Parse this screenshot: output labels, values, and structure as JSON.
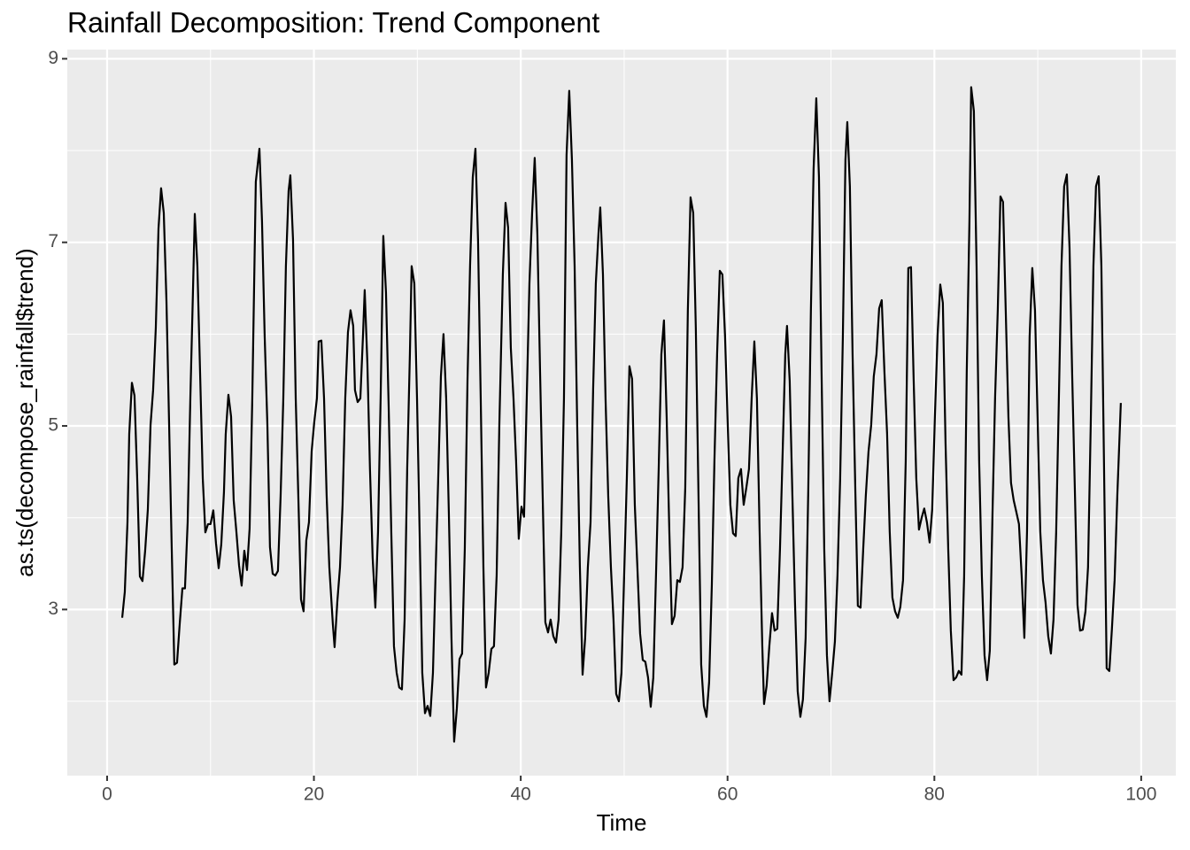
{
  "chart_data": {
    "type": "line",
    "title": "Rainfall Decomposition: Trend Component",
    "x_label": "Time",
    "y_label": "as.ts(decompose_rainfall$trend)",
    "xlim": [
      -3.85,
      103.35
    ],
    "ylim": [
      1.19,
      9.1
    ],
    "xticks": [
      0,
      20,
      40,
      60,
      80,
      100
    ],
    "yticks": [
      3,
      5,
      7,
      9
    ],
    "grid": true,
    "color": "#000000",
    "x": [
      1.46,
      1.71,
      1.97,
      2.14,
      2.4,
      2.65,
      2.91,
      3.17,
      3.42,
      3.68,
      3.94,
      4.2,
      4.45,
      4.71,
      4.97,
      5.22,
      5.48,
      5.74,
      6.0,
      6.25,
      6.5,
      6.76,
      7.02,
      7.28,
      7.53,
      7.79,
      8.05,
      8.3,
      8.48,
      8.73,
      8.99,
      9.25,
      9.5,
      9.76,
      10.0,
      10.27,
      10.53,
      10.79,
      11.04,
      11.3,
      11.47,
      11.73,
      11.99,
      12.24,
      12.5,
      12.76,
      13.01,
      13.27,
      13.53,
      13.78,
      14.04,
      14.38,
      14.73,
      14.98,
      15.24,
      15.5,
      15.75,
      16.01,
      16.27,
      16.52,
      16.78,
      17.04,
      17.29,
      17.55,
      17.72,
      17.98,
      18.24,
      18.49,
      18.75,
      19.0,
      19.26,
      19.52,
      19.78,
      20.03,
      20.29,
      20.46,
      20.72,
      20.98,
      21.23,
      21.49,
      21.83,
      22.0,
      22.26,
      22.52,
      22.77,
      23.03,
      23.29,
      23.54,
      23.8,
      23.97,
      24.23,
      24.49,
      24.74,
      24.91,
      25.17,
      25.42,
      25.68,
      25.94,
      26.2,
      26.45,
      26.71,
      26.97,
      27.23,
      27.48,
      27.74,
      28.0,
      28.25,
      28.51,
      28.77,
      29.02,
      29.28,
      29.45,
      29.71,
      29.97,
      30.22,
      30.48,
      30.74,
      30.99,
      31.25,
      31.51,
      31.76,
      32.02,
      32.28,
      32.53,
      32.79,
      33.05,
      33.3,
      33.56,
      33.82,
      34.08,
      34.33,
      34.59,
      34.85,
      35.1,
      35.36,
      35.62,
      35.87,
      36.13,
      36.39,
      36.64,
      36.9,
      37.16,
      37.41,
      37.67,
      37.93,
      38.27,
      38.53,
      38.78,
      39.04,
      39.3,
      39.55,
      39.81,
      40.07,
      40.32,
      40.58,
      40.84,
      41.1,
      41.35,
      41.61,
      41.87,
      42.12,
      42.38,
      42.64,
      42.89,
      43.15,
      43.41,
      43.66,
      43.92,
      44.18,
      44.43,
      44.69,
      44.95,
      45.21,
      45.46,
      45.72,
      45.98,
      46.23,
      46.49,
      46.75,
      47.0,
      47.26,
      47.52,
      47.69,
      47.95,
      48.2,
      48.46,
      48.72,
      48.97,
      49.23,
      49.49,
      49.74,
      50.0,
      50.26,
      50.51,
      50.77,
      51.03,
      51.28,
      51.54,
      51.8,
      52.05,
      52.31,
      52.57,
      52.82,
      53.08,
      53.34,
      53.6,
      53.85,
      54.11,
      54.37,
      54.62,
      54.88,
      55.14,
      55.39,
      55.65,
      55.91,
      56.16,
      56.42,
      56.68,
      56.93,
      57.19,
      57.45,
      57.71,
      57.96,
      58.22,
      58.48,
      58.73,
      58.99,
      59.25,
      59.5,
      59.76,
      60.02,
      60.27,
      60.53,
      60.79,
      61.04,
      61.3,
      61.56,
      61.82,
      62.07,
      62.33,
      62.59,
      62.84,
      63.1,
      63.36,
      63.53,
      63.78,
      64.04,
      64.3,
      64.55,
      64.81,
      65.07,
      65.33,
      65.58,
      65.75,
      66.01,
      66.27,
      66.52,
      66.78,
      67.04,
      67.29,
      67.55,
      67.81,
      68.06,
      68.32,
      68.58,
      68.84,
      69.09,
      69.35,
      69.61,
      69.86,
      70.12,
      70.38,
      70.63,
      70.89,
      71.15,
      71.4,
      71.58,
      71.83,
      72.09,
      72.35,
      72.6,
      72.86,
      73.12,
      73.37,
      73.63,
      73.89,
      74.14,
      74.4,
      74.66,
      74.91,
      75.17,
      75.43,
      75.68,
      75.94,
      76.2,
      76.46,
      76.71,
      76.97,
      77.23,
      77.48,
      77.74,
      78.0,
      78.25,
      78.51,
      78.77,
      79.02,
      79.28,
      79.54,
      79.79,
      80.05,
      80.31,
      80.57,
      80.82,
      81.08,
      81.34,
      81.59,
      81.85,
      82.11,
      82.36,
      82.62,
      82.88,
      83.13,
      83.39,
      83.56,
      83.82,
      84.08,
      84.33,
      84.59,
      84.85,
      85.1,
      85.36,
      85.62,
      85.87,
      86.13,
      86.39,
      86.64,
      86.9,
      87.16,
      87.41,
      87.67,
      87.93,
      88.18,
      88.44,
      88.7,
      88.96,
      89.21,
      89.47,
      89.73,
      89.98,
      90.24,
      90.5,
      90.75,
      91.01,
      91.27,
      91.52,
      91.78,
      92.04,
      92.29,
      92.55,
      92.81,
      93.07,
      93.32,
      93.58,
      93.84,
      94.09,
      94.35,
      94.61,
      94.86,
      95.12,
      95.38,
      95.63,
      95.89,
      96.15,
      96.4,
      96.66,
      96.92,
      97.17,
      97.43,
      97.69,
      98.03
    ],
    "values": [
      2.91,
      3.19,
      3.95,
      4.91,
      5.47,
      5.33,
      4.43,
      3.36,
      3.31,
      3.64,
      4.09,
      5.01,
      5.39,
      6.07,
      7.15,
      7.59,
      7.32,
      6.36,
      5.0,
      3.66,
      2.4,
      2.42,
      2.84,
      3.23,
      3.23,
      3.95,
      5.3,
      6.45,
      7.31,
      6.74,
      5.59,
      4.43,
      3.84,
      3.93,
      3.93,
      4.08,
      3.72,
      3.45,
      3.71,
      4.28,
      4.91,
      5.34,
      5.1,
      4.19,
      3.85,
      3.48,
      3.26,
      3.64,
      3.43,
      3.88,
      5.3,
      7.66,
      8.02,
      7.23,
      5.97,
      5.01,
      3.68,
      3.39,
      3.37,
      3.42,
      4.24,
      5.3,
      6.74,
      7.56,
      7.73,
      7.03,
      5.3,
      4.24,
      3.11,
      2.98,
      3.75,
      3.95,
      4.72,
      5.04,
      5.3,
      5.92,
      5.93,
      5.3,
      4.24,
      3.46,
      2.84,
      2.59,
      3.08,
      3.46,
      4.14,
      5.3,
      6.02,
      6.26,
      6.09,
      5.39,
      5.26,
      5.3,
      5.97,
      6.48,
      5.68,
      4.53,
      3.56,
      3.02,
      3.85,
      5.3,
      7.07,
      6.45,
      5.2,
      3.85,
      2.6,
      2.31,
      2.15,
      2.13,
      2.89,
      4.53,
      5.78,
      6.74,
      6.55,
      5.3,
      3.85,
      2.31,
      1.87,
      1.95,
      1.84,
      2.31,
      3.37,
      4.43,
      5.54,
      6.0,
      5.3,
      4.04,
      2.69,
      1.56,
      1.92,
      2.46,
      2.52,
      3.66,
      5.49,
      6.74,
      7.71,
      8.02,
      7.03,
      5.3,
      3.46,
      2.15,
      2.31,
      2.57,
      2.6,
      3.37,
      5.01,
      6.65,
      7.43,
      7.16,
      5.85,
      5.3,
      4.62,
      3.77,
      4.12,
      4.01,
      5.3,
      6.55,
      7.32,
      7.92,
      7.08,
      5.59,
      4.24,
      2.86,
      2.75,
      2.89,
      2.71,
      2.64,
      2.89,
      3.85,
      5.3,
      7.95,
      8.65,
      7.9,
      6.74,
      5.01,
      3.46,
      2.29,
      2.69,
      3.46,
      3.95,
      5.39,
      6.55,
      7.1,
      7.38,
      6.65,
      5.3,
      4.24,
      3.46,
      2.89,
      2.08,
      2.0,
      2.31,
      3.37,
      4.43,
      5.65,
      5.51,
      4.14,
      3.46,
      2.74,
      2.45,
      2.43,
      2.26,
      1.94,
      2.26,
      3.37,
      4.53,
      5.78,
      6.15,
      5.1,
      3.85,
      2.84,
      2.93,
      3.32,
      3.3,
      3.46,
      4.33,
      6.26,
      7.49,
      7.32,
      6.07,
      4.24,
      2.4,
      1.95,
      1.83,
      2.21,
      3.27,
      4.62,
      5.78,
      6.69,
      6.65,
      5.97,
      5.01,
      4.14,
      3.83,
      3.8,
      4.43,
      4.53,
      4.14,
      4.33,
      4.53,
      5.3,
      5.92,
      5.3,
      3.85,
      2.6,
      1.97,
      2.17,
      2.6,
      2.96,
      2.77,
      2.79,
      3.66,
      4.72,
      5.78,
      6.09,
      5.49,
      4.24,
      3.08,
      2.11,
      1.83,
      2.02,
      2.69,
      4.33,
      6.26,
      7.8,
      8.57,
      7.71,
      5.59,
      3.66,
      2.5,
      2.0,
      2.31,
      2.65,
      3.37,
      4.43,
      5.97,
      7.9,
      8.31,
      7.61,
      5.78,
      4.33,
      3.04,
      3.02,
      3.66,
      4.24,
      4.72,
      5.01,
      5.54,
      5.78,
      6.28,
      6.37,
      5.59,
      4.91,
      3.85,
      3.13,
      2.98,
      2.91,
      3.03,
      3.32,
      4.62,
      6.72,
      6.73,
      5.49,
      4.43,
      3.87,
      4.0,
      4.1,
      3.95,
      3.73,
      4.09,
      5.1,
      5.99,
      6.54,
      6.34,
      4.81,
      3.66,
      2.77,
      2.23,
      2.26,
      2.33,
      2.29,
      3.37,
      5.59,
      7.23,
      8.69,
      8.43,
      6.74,
      4.62,
      3.37,
      2.5,
      2.23,
      2.55,
      4.04,
      5.3,
      6.26,
      7.5,
      7.44,
      6.26,
      5.1,
      4.38,
      4.19,
      4.06,
      3.93,
      3.37,
      2.69,
      3.85,
      5.97,
      6.72,
      6.26,
      5.1,
      3.85,
      3.32,
      3.08,
      2.71,
      2.52,
      2.89,
      3.85,
      5.3,
      6.74,
      7.61,
      7.74,
      6.94,
      5.59,
      4.33,
      3.05,
      2.77,
      2.78,
      2.98,
      3.46,
      5.01,
      6.74,
      7.61,
      7.72,
      6.74,
      4.62,
      2.36,
      2.33,
      2.79,
      3.32,
      4.24,
      5.25
    ]
  }
}
